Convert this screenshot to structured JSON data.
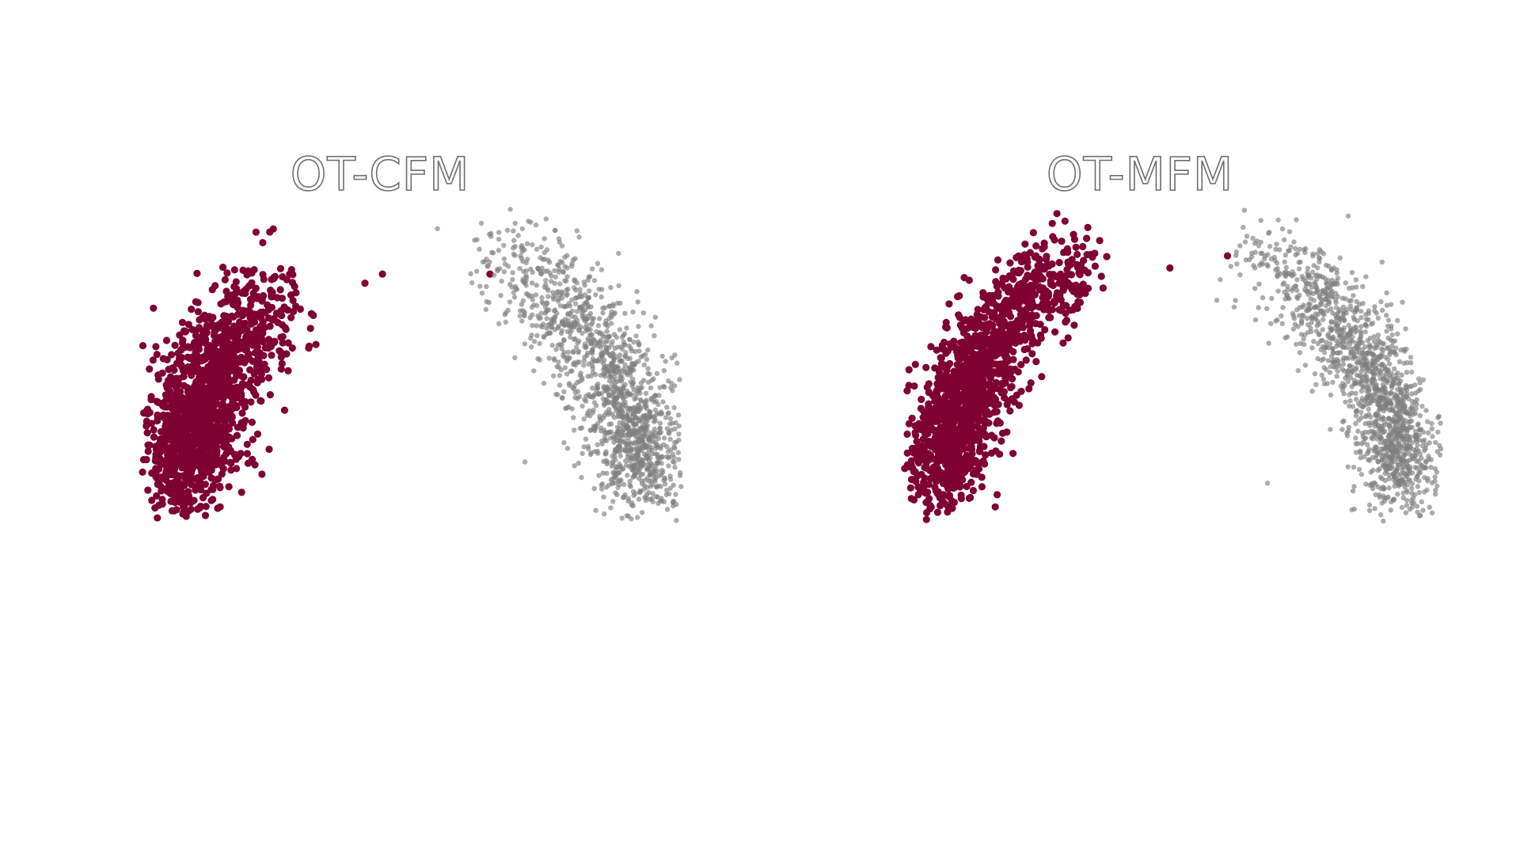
{
  "chart_data": [
    {
      "type": "scatter",
      "title": "OT-CFM",
      "xlabel": "",
      "ylabel": "",
      "xlim": [
        -1.08,
        1.08
      ],
      "ylim": [
        0,
        1.04
      ],
      "grid": false,
      "legend": "none",
      "axes_visible": false,
      "series": [
        {
          "color": "#7f0033",
          "marker_size": "large",
          "opacity": 1.0,
          "distribution": {
            "shape": "arc",
            "point_count": 1400,
            "angle_deg_range": [
              118,
              180
            ],
            "angle_concentration": 162,
            "radius_mean": 0.94,
            "radius_spread": 0.09,
            "outliers": [
              [
                -0.19,
                0.79
              ],
              [
                -0.12,
                0.82
              ],
              [
                0.31,
                0.82
              ]
            ]
          }
        },
        {
          "color": "#808080",
          "marker_size": "small",
          "opacity": 0.65,
          "distribution": {
            "shape": "arc",
            "point_count": 1400,
            "angle_deg_range": [
              0,
              78
            ],
            "angle_concentration": 15,
            "radius_mean": 0.94,
            "radius_spread": 0.09,
            "outliers": [
              [
                0.45,
                0.2
              ],
              [
                0.1,
                0.97
              ],
              [
                0.27,
                0.78
              ]
            ]
          }
        }
      ]
    },
    {
      "type": "scatter",
      "title": "OT-MFM",
      "xlabel": "",
      "ylabel": "",
      "xlim": [
        -1.08,
        1.08
      ],
      "ylim": [
        0,
        1.04
      ],
      "grid": false,
      "legend": "none",
      "axes_visible": false,
      "series": [
        {
          "color": "#7f0033",
          "marker_size": "large",
          "opacity": 1.0,
          "distribution": {
            "shape": "arc",
            "point_count": 1400,
            "angle_deg_range": [
              105,
              180
            ],
            "angle_concentration": 160,
            "radius_mean": 0.94,
            "radius_spread": 0.08,
            "outliers": [
              [
                0.22,
                0.88
              ],
              [
                -0.01,
                0.84
              ]
            ]
          }
        },
        {
          "color": "#808080",
          "marker_size": "small",
          "opacity": 0.65,
          "distribution": {
            "shape": "arc",
            "point_count": 1400,
            "angle_deg_range": [
              0,
              78
            ],
            "angle_concentration": 15,
            "radius_mean": 0.94,
            "radius_spread": 0.08,
            "outliers": [
              [
                0.38,
                0.13
              ],
              [
                0.33,
                0.84
              ]
            ]
          }
        }
      ]
    }
  ]
}
